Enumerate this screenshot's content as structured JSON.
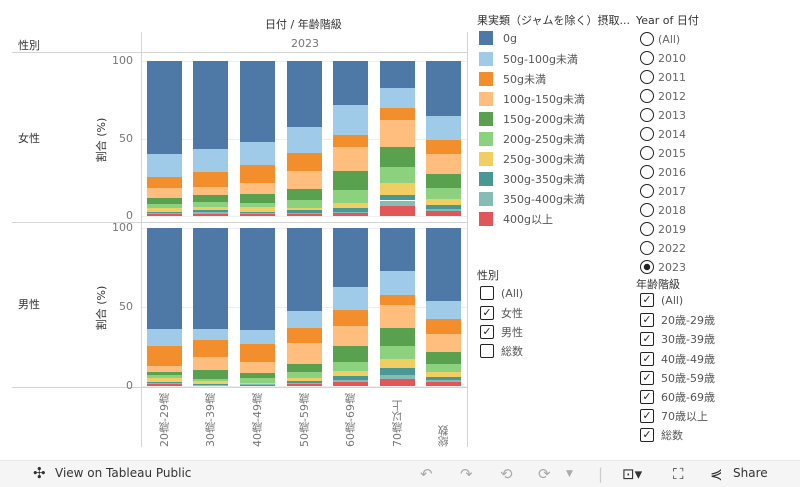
{
  "header": {
    "column_title": "日付 / 年齢階級",
    "row_header": "性別",
    "year": "2023"
  },
  "chart_data": {
    "type": "bar",
    "stacked": true,
    "normalized_percent": true,
    "ylabel": "割合 (%)",
    "ylim": [
      0,
      100
    ],
    "yticks": [
      "0",
      "50",
      "100"
    ],
    "grid": true,
    "categories": [
      "20歳-29歳",
      "30歳-39歳",
      "40歳-49歳",
      "50歳-59歳",
      "60歳-69歳",
      "70歳以上",
      "総数"
    ],
    "series_names": [
      "0g",
      "50g-100g未満",
      "50g未満",
      "100g-150g未満",
      "150g-200g未満",
      "200g-250g未満",
      "250g-300g未満",
      "300g-350g未満",
      "350g-400g未満",
      "400g以上"
    ],
    "colors": [
      "#4e79a7",
      "#a0cbe8",
      "#f28e2b",
      "#ffbe7d",
      "#59a14f",
      "#8cd17d",
      "#f1ce63",
      "#499894",
      "#86bcb6",
      "#e15759"
    ],
    "panels": [
      {
        "label": "女性",
        "values": [
          [
            60.0,
            15.0,
            6.9,
            6.2,
            4.4,
            2.5,
            2.5,
            0.8,
            0.6,
            1.1
          ],
          [
            56.9,
            14.4,
            10.0,
            5.0,
            4.4,
            3.8,
            1.9,
            1.2,
            0.8,
            1.6
          ],
          [
            52.5,
            14.4,
            11.9,
            6.9,
            5.6,
            3.1,
            3.1,
            0.8,
            0.6,
            1.1
          ],
          [
            42.5,
            16.9,
            11.3,
            11.9,
            6.9,
            5.6,
            1.2,
            1.9,
            0.4,
            1.4
          ],
          [
            28.1,
            19.4,
            8.1,
            15.6,
            11.9,
            8.8,
            3.1,
            2.3,
            0.4,
            2.3
          ],
          [
            17.5,
            13.1,
            7.5,
            17.5,
            12.5,
            10.6,
            7.5,
            3.8,
            3.8,
            6.2
          ],
          [
            35.6,
            15.6,
            8.8,
            13.1,
            8.8,
            6.9,
            4.4,
            2.5,
            1.2,
            3.1
          ]
        ]
      },
      {
        "label": "男性",
        "values": [
          [
            64.2,
            10.7,
            12.6,
            3.8,
            1.9,
            1.9,
            2.5,
            0.6,
            0.4,
            1.4
          ],
          [
            64.2,
            6.9,
            10.7,
            8.2,
            5.7,
            1.3,
            1.9,
            0.4,
            0.2,
            0.5
          ],
          [
            64.8,
            8.8,
            11.3,
            6.9,
            3.1,
            3.1,
            0.4,
            0.2,
            0.1,
            1.3
          ],
          [
            52.8,
            10.7,
            9.4,
            13.2,
            5.0,
            3.8,
            1.9,
            1.3,
            0.4,
            1.5
          ],
          [
            37.1,
            14.5,
            10.7,
            12.6,
            10.1,
            5.7,
            3.1,
            2.5,
            1.3,
            2.4
          ],
          [
            27.0,
            15.1,
            6.9,
            14.5,
            11.3,
            8.2,
            5.7,
            4.4,
            2.5,
            4.4
          ],
          [
            45.9,
            11.9,
            9.4,
            11.3,
            7.5,
            5.0,
            3.1,
            1.9,
            1.3,
            2.7
          ]
        ]
      }
    ]
  },
  "legend": {
    "title": "果実類（ジャムを除く）摂取..."
  },
  "year_filter": {
    "title": "Year of 日付",
    "options": [
      "(All)",
      "2010",
      "2011",
      "2012",
      "2013",
      "2014",
      "2015",
      "2016",
      "2017",
      "2018",
      "2019",
      "2022",
      "2023"
    ],
    "selected": "2023"
  },
  "gender_filter": {
    "title": "性別",
    "options": [
      {
        "label": "(All)",
        "checked": false
      },
      {
        "label": "女性",
        "checked": true
      },
      {
        "label": "男性",
        "checked": true
      },
      {
        "label": "総数",
        "checked": false
      }
    ]
  },
  "age_filter": {
    "title": "年齢階級",
    "options": [
      {
        "label": "(All)",
        "checked": true
      },
      {
        "label": "20歳-29歳",
        "checked": true
      },
      {
        "label": "30歳-39歳",
        "checked": true
      },
      {
        "label": "40歳-49歳",
        "checked": true
      },
      {
        "label": "50歳-59歳",
        "checked": true
      },
      {
        "label": "60歳-69歳",
        "checked": true
      },
      {
        "label": "70歳以上",
        "checked": true
      },
      {
        "label": "総数",
        "checked": true
      }
    ]
  },
  "toolbar": {
    "view_label": "View on Tableau Public",
    "share_label": "Share",
    "check_mark": "✓"
  }
}
